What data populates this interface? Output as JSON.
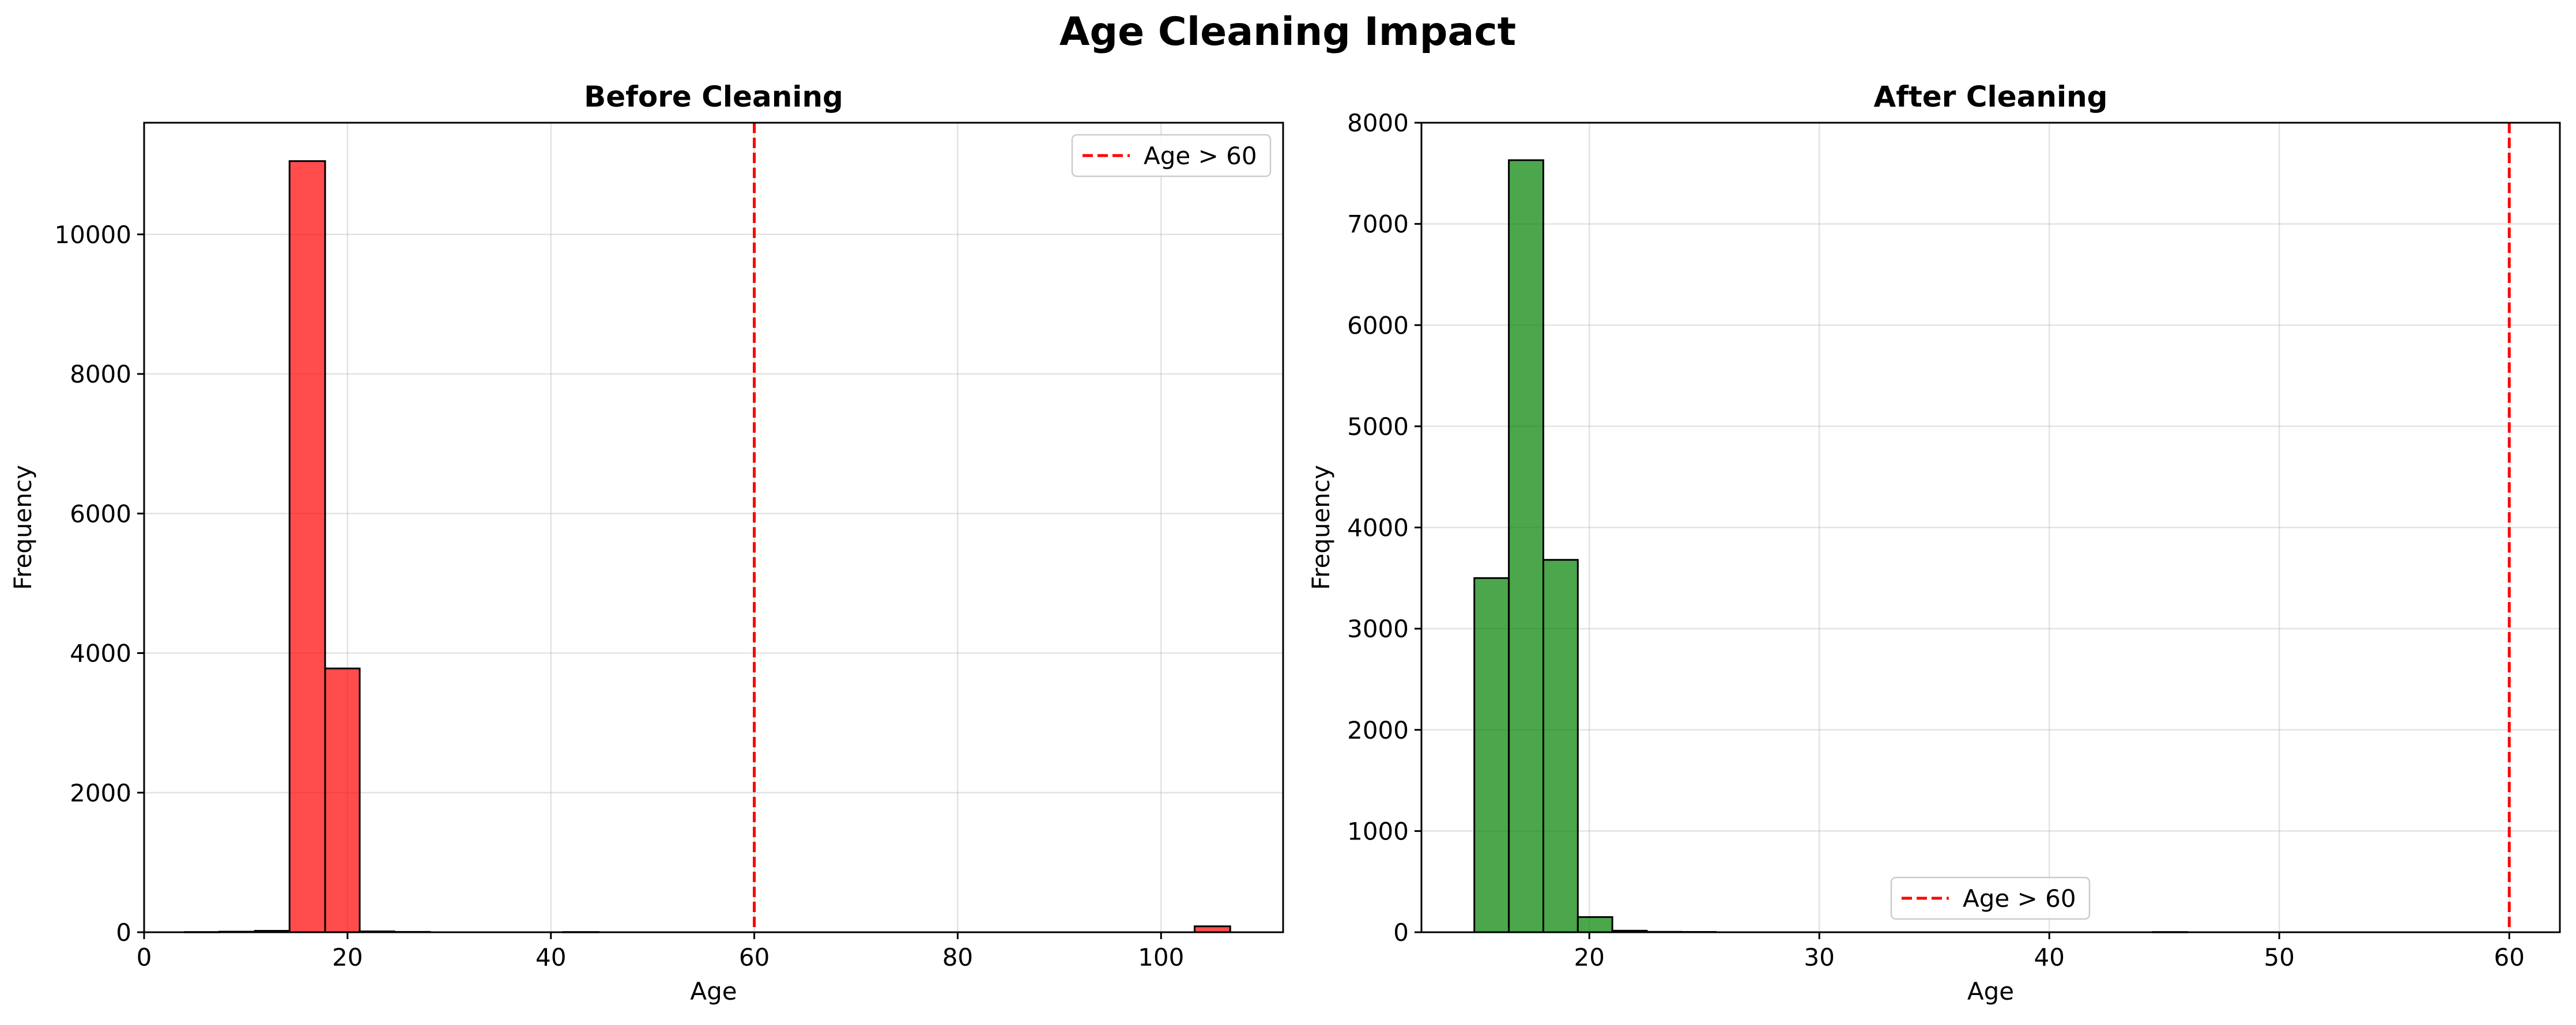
{
  "figure": {
    "title": "Age Cleaning Impact"
  },
  "chart_data": [
    {
      "type": "bar",
      "title": "Before Cleaning",
      "xlabel": "Age",
      "ylabel": "Frequency",
      "xlim": [
        0,
        112
      ],
      "ylim": [
        0,
        11600
      ],
      "xticks": [
        0,
        20,
        40,
        60,
        80,
        100
      ],
      "yticks": [
        0,
        2000,
        4000,
        6000,
        8000,
        10000
      ],
      "grid": true,
      "bar_color": "#ff0000",
      "bar_opacity": 0.7,
      "reference_line": {
        "x": 60,
        "label": "Age > 60",
        "color": "#ff0000",
        "style": "dashed"
      },
      "legend": {
        "position": "top-right",
        "entries": [
          "Age > 60"
        ]
      },
      "bins": [
        {
          "x0": 4.0,
          "x1": 7.4,
          "value": 3
        },
        {
          "x0": 7.4,
          "x1": 10.9,
          "value": 8
        },
        {
          "x0": 10.9,
          "x1": 14.3,
          "value": 20
        },
        {
          "x0": 14.3,
          "x1": 17.8,
          "value": 11050
        },
        {
          "x0": 17.8,
          "x1": 21.2,
          "value": 3780
        },
        {
          "x0": 21.2,
          "x1": 24.6,
          "value": 12
        },
        {
          "x0": 24.6,
          "x1": 28.1,
          "value": 5
        },
        {
          "x0": 41.2,
          "x1": 44.7,
          "value": 3
        },
        {
          "x0": 103.3,
          "x1": 106.8,
          "value": 85
        }
      ]
    },
    {
      "type": "bar",
      "title": "After Cleaning",
      "xlabel": "Age",
      "ylabel": "Frequency",
      "xlim": [
        12.7,
        62.2
      ],
      "ylim": [
        0,
        8000
      ],
      "xticks": [
        20,
        30,
        40,
        50,
        60
      ],
      "yticks": [
        0,
        1000,
        2000,
        3000,
        4000,
        5000,
        6000,
        7000,
        8000
      ],
      "grid": true,
      "bar_color": "#008000",
      "bar_opacity": 0.7,
      "reference_line": {
        "x": 60,
        "label": "Age > 60",
        "color": "#ff0000",
        "style": "dashed"
      },
      "legend": {
        "position": "bottom-center",
        "entries": [
          "Age > 60"
        ]
      },
      "bins": [
        {
          "x0": 15.0,
          "x1": 16.5,
          "value": 3500
        },
        {
          "x0": 16.5,
          "x1": 18.0,
          "value": 7630
        },
        {
          "x0": 18.0,
          "x1": 19.5,
          "value": 3680
        },
        {
          "x0": 19.5,
          "x1": 21.0,
          "value": 150
        },
        {
          "x0": 21.0,
          "x1": 22.5,
          "value": 15
        },
        {
          "x0": 22.5,
          "x1": 24.0,
          "value": 4
        },
        {
          "x0": 24.0,
          "x1": 25.5,
          "value": 3
        },
        {
          "x0": 44.5,
          "x1": 46.0,
          "value": 2
        }
      ]
    }
  ]
}
